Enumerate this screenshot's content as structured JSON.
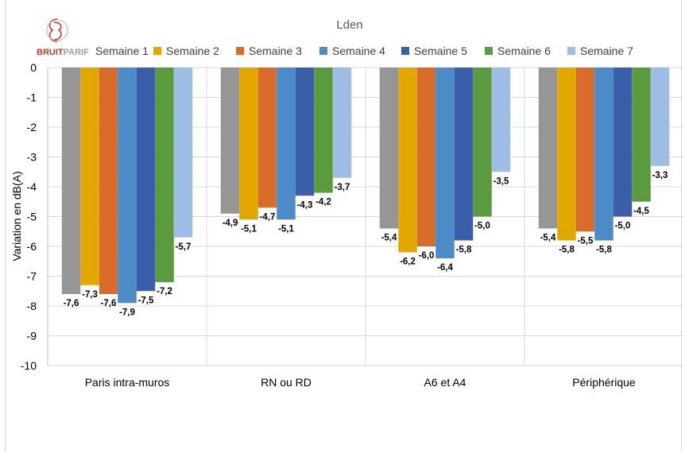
{
  "logo": {
    "text_bold": "BRUIT",
    "text_light": "PARIF",
    "color": "#c0392b"
  },
  "chart_data": {
    "type": "bar",
    "title": "Lden",
    "xlabel": "",
    "ylabel": "Variation en dB(A)",
    "ylim": [
      -10,
      0
    ],
    "yticks": [
      "0",
      "-1",
      "-2",
      "-3",
      "-4",
      "-5",
      "-6",
      "-7",
      "-8",
      "-9",
      "-10"
    ],
    "grid": true,
    "legend_position": "top",
    "categories": [
      "Paris intra-muros",
      "RN ou RD",
      "A6 et A4",
      "Périphérique"
    ],
    "series": [
      {
        "name": "Semaine 1",
        "color": "#969696",
        "values": [
          -7.6,
          -4.9,
          -5.4,
          -5.4
        ],
        "labels": [
          "-7,6",
          "-4,9",
          "-5,4",
          "-5,4"
        ]
      },
      {
        "name": "Semaine 2",
        "color": "#e3a800",
        "values": [
          -7.3,
          -5.1,
          -6.2,
          -5.8
        ],
        "labels": [
          "-7,3",
          "-5,1",
          "-6,2",
          "-5,8"
        ]
      },
      {
        "name": "Semaine 3",
        "color": "#d96b2b",
        "values": [
          -7.6,
          -4.7,
          -6.0,
          -5.5
        ],
        "labels": [
          "-7,6",
          "-4,7",
          "-6,0",
          "-5,5"
        ]
      },
      {
        "name": "Semaine 4",
        "color": "#4d8bc6",
        "values": [
          -7.9,
          -5.1,
          -6.4,
          -5.8
        ],
        "labels": [
          "-7,9",
          "-5,1",
          "-6,4",
          "-5,8"
        ]
      },
      {
        "name": "Semaine 5",
        "color": "#3a5eaa",
        "values": [
          -7.5,
          -4.3,
          -5.8,
          -5.0
        ],
        "labels": [
          "-7,5",
          "-4,3",
          "-5,8",
          "-5,0"
        ]
      },
      {
        "name": "Semaine 6",
        "color": "#5b9a3d",
        "values": [
          -7.2,
          -4.2,
          -5.0,
          -4.5
        ],
        "labels": [
          "-7,2",
          "-4,2",
          "-5,0",
          "-4,5"
        ]
      },
      {
        "name": "Semaine 7",
        "color": "#9dbde6",
        "values": [
          -5.7,
          -3.7,
          -3.5,
          -3.3
        ],
        "labels": [
          "-5,7",
          "-3,7",
          "-3,5",
          "-3,3"
        ]
      }
    ]
  }
}
